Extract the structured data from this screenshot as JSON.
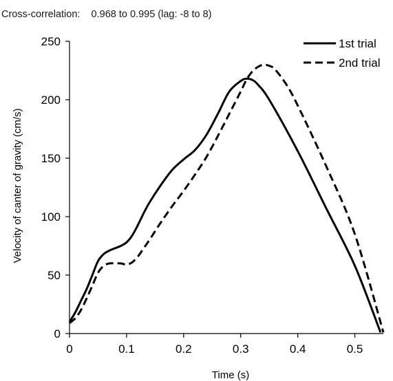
{
  "chart_data": {
    "type": "line",
    "title": "Cross-correlation:    0.968 to 0.995 (lag: -8 to 8)",
    "xlabel": "Time (s)",
    "ylabel": "Velocity of canter of gravity (cm/s)",
    "xlim": [
      0,
      0.55
    ],
    "ylim": [
      0,
      250
    ],
    "x_ticks": [
      "0",
      "0.1",
      "0.2",
      "0.3",
      "0.4",
      "0.5"
    ],
    "x_tick_values": [
      0,
      0.1,
      0.2,
      0.3,
      0.4,
      0.5
    ],
    "y_ticks": [
      "0",
      "50",
      "100",
      "150",
      "200",
      "250"
    ],
    "y_tick_values": [
      0,
      50,
      100,
      150,
      200,
      250
    ],
    "grid": false,
    "legend_position": "top-right",
    "series": [
      {
        "name": "1st trial",
        "style": "solid",
        "color": "#000000",
        "x": [
          0,
          0.01,
          0.02,
          0.03,
          0.04,
          0.05,
          0.06,
          0.07,
          0.08,
          0.09,
          0.1,
          0.11,
          0.12,
          0.13,
          0.14,
          0.16,
          0.18,
          0.2,
          0.22,
          0.24,
          0.26,
          0.28,
          0.3,
          0.31,
          0.32,
          0.33,
          0.35,
          0.4,
          0.45,
          0.5,
          0.545
        ],
        "y": [
          10,
          18,
          28,
          38,
          50,
          62,
          68,
          71,
          73,
          75,
          78,
          84,
          93,
          103,
          112,
          127,
          140,
          149,
          157,
          170,
          188,
          207,
          216,
          218,
          217,
          213,
          200,
          156,
          107,
          58,
          1
        ]
      },
      {
        "name": "2nd trial",
        "style": "dashed",
        "color": "#000000",
        "x": [
          0,
          0.01,
          0.02,
          0.03,
          0.04,
          0.05,
          0.06,
          0.07,
          0.08,
          0.09,
          0.1,
          0.11,
          0.12,
          0.13,
          0.14,
          0.16,
          0.18,
          0.2,
          0.22,
          0.24,
          0.26,
          0.28,
          0.3,
          0.31,
          0.32,
          0.33,
          0.34,
          0.35,
          0.36,
          0.38,
          0.4,
          0.45,
          0.5,
          0.55
        ],
        "y": [
          9,
          13,
          20,
          30,
          41,
          52,
          58,
          60,
          60,
          60,
          59,
          61,
          66,
          73,
          80,
          95,
          109,
          122,
          136,
          151,
          169,
          188,
          207,
          217,
          224,
          228,
          230,
          229,
          226,
          213,
          195,
          143,
          85,
          1
        ]
      }
    ]
  }
}
